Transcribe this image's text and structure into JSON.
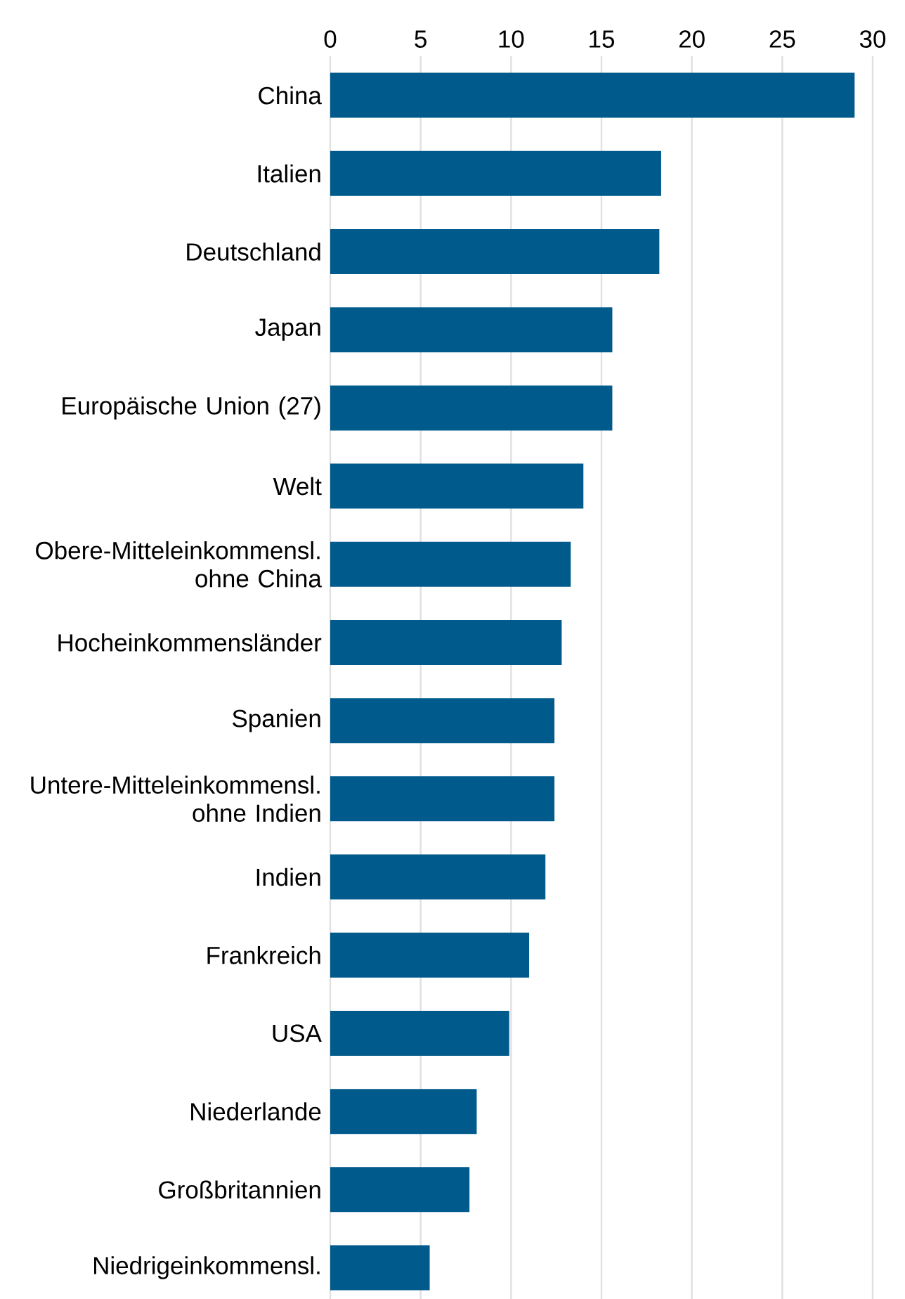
{
  "chart_data": {
    "type": "bar",
    "orientation": "horizontal",
    "categories": [
      "China",
      "Italien",
      "Deutschland",
      "Japan",
      "Europäische Union (27)",
      "Welt",
      "Obere-Mitteleinkommensl. ohne China",
      "Hocheinkommensländer",
      "Spanien",
      "Untere-Mitteleinkommensl. ohne Indien",
      "Indien",
      "Frankreich",
      "USA",
      "Niederlande",
      "Großbritannien",
      "Niedrigeinkommensl."
    ],
    "values": [
      29.0,
      18.3,
      18.2,
      15.6,
      15.6,
      14.0,
      13.3,
      12.8,
      12.4,
      12.4,
      11.9,
      11.0,
      9.9,
      8.1,
      7.7,
      5.5
    ],
    "color": "#005a8c",
    "xlim": [
      0,
      30
    ],
    "xticks": [
      0,
      5,
      10,
      15,
      20,
      25,
      30
    ],
    "grid": "x"
  }
}
